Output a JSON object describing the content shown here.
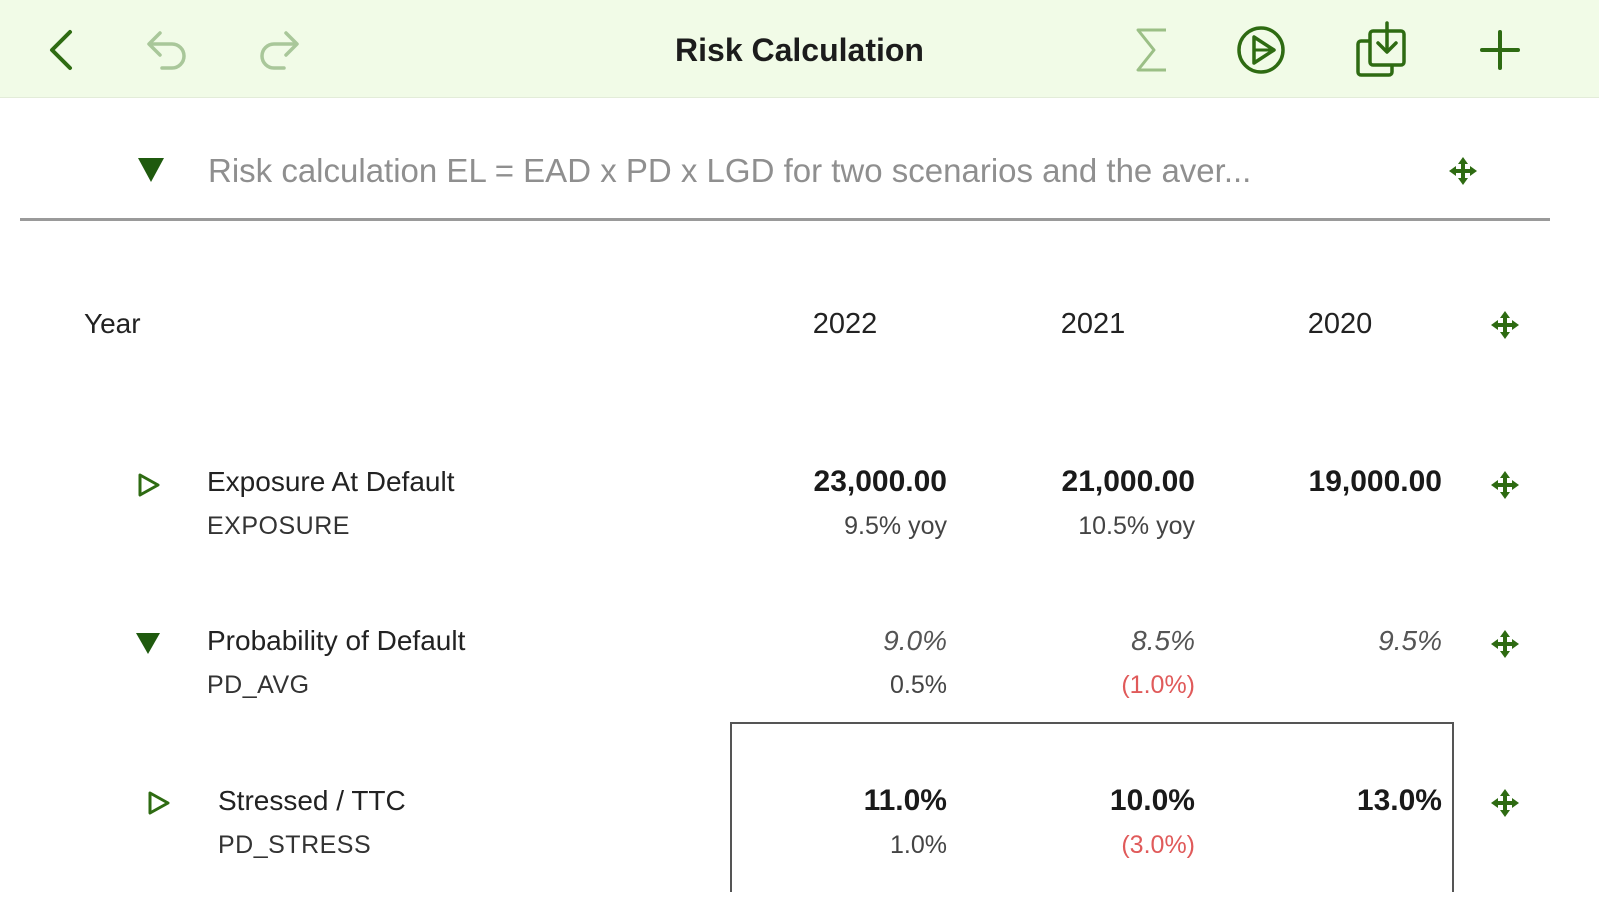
{
  "header": {
    "title": "Risk Calculation",
    "icons": [
      "back-icon",
      "undo-icon",
      "redo-icon",
      "sum-icon",
      "play-circle-icon",
      "import-icon",
      "add-icon"
    ],
    "accent_color": "#2e6b12",
    "background_color": "#f1fbe7"
  },
  "description": {
    "text": "Risk calculation EL = EAD x PD x LGD for two scenarios and the aver..."
  },
  "table": {
    "year_label": "Year",
    "years": [
      "2022",
      "2021",
      "2020"
    ],
    "rows": [
      {
        "label": "Exposure At Default",
        "code": "EXPOSURE",
        "values": [
          "23,000.00",
          "21,000.00",
          "19,000.00"
        ],
        "changes": [
          "9.5% yoy",
          "10.5% yoy",
          ""
        ]
      },
      {
        "label": "Probability of Default",
        "code": "PD_AVG",
        "values": [
          "9.0%",
          "8.5%",
          "9.5%"
        ],
        "changes": [
          "0.5%",
          "(1.0%)",
          ""
        ]
      },
      {
        "label": "Stressed / TTC",
        "code": "PD_STRESS",
        "values": [
          "11.0%",
          "10.0%",
          "13.0%"
        ],
        "changes": [
          "1.0%",
          "(3.0%)",
          ""
        ]
      }
    ],
    "negative_color": "#e05a5a"
  }
}
